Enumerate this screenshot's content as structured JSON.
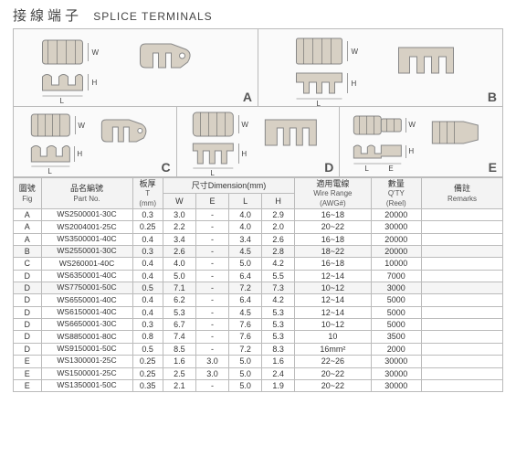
{
  "title_cn": "接線端子",
  "title_en": "SPLICE TERMINALS",
  "figures": [
    "A",
    "B",
    "C",
    "D",
    "E"
  ],
  "dim_labels": {
    "W": "W",
    "L": "L",
    "H": "H",
    "E": "E"
  },
  "header": {
    "fig_cn": "圖號",
    "fig_en": "Fig",
    "part_cn": "品名編號",
    "part_en": "Part No.",
    "thick_cn": "板厚",
    "thick_sub": "T",
    "thick_unit": "(mm)",
    "dim_cn": "尺寸",
    "dim_en": "Dimension(mm)",
    "W": "W",
    "E": "E",
    "L": "L",
    "H": "H",
    "wire_cn": "適用電線",
    "wire_en": "Wire Range",
    "wire_sub": "(AWG#)",
    "qty_cn": "數量",
    "qty_en": "Q'TY",
    "qty_sub": "(Reel)",
    "remarks_cn": "備註",
    "remarks_en": "Remarks"
  },
  "rows": [
    {
      "fig": "A",
      "part": "WS2500001-30C",
      "t": "0.3",
      "w": "3.0",
      "e": "-",
      "l": "4.0",
      "h": "2.9",
      "wire": "16~18",
      "qty": "20000",
      "rem": ""
    },
    {
      "fig": "A",
      "part": "WS2004001-25C",
      "t": "0.25",
      "w": "2.2",
      "e": "-",
      "l": "4.0",
      "h": "2.0",
      "wire": "20~22",
      "qty": "30000",
      "rem": ""
    },
    {
      "fig": "A",
      "part": "WS3500001-40C",
      "t": "0.4",
      "w": "3.4",
      "e": "-",
      "l": "3.4",
      "h": "2.6",
      "wire": "16~18",
      "qty": "20000",
      "rem": ""
    },
    {
      "fig": "B",
      "part": "WS2550001-30C",
      "t": "0.3",
      "w": "2.6",
      "e": "-",
      "l": "4.5",
      "h": "2.8",
      "wire": "18~22",
      "qty": "20000",
      "rem": ""
    },
    {
      "fig": "C",
      "part": "WS260001-40C",
      "t": "0.4",
      "w": "4.0",
      "e": "-",
      "l": "5.0",
      "h": "4.2",
      "wire": "16~18",
      "qty": "10000",
      "rem": ""
    },
    {
      "fig": "D",
      "part": "WS6350001-40C",
      "t": "0.4",
      "w": "5.0",
      "e": "-",
      "l": "6.4",
      "h": "5.5",
      "wire": "12~14",
      "qty": "7000",
      "rem": ""
    },
    {
      "fig": "D",
      "part": "WS7750001-50C",
      "t": "0.5",
      "w": "7.1",
      "e": "-",
      "l": "7.2",
      "h": "7.3",
      "wire": "10~12",
      "qty": "3000",
      "rem": ""
    },
    {
      "fig": "D",
      "part": "WS6550001-40C",
      "t": "0.4",
      "w": "6.2",
      "e": "-",
      "l": "6.4",
      "h": "4.2",
      "wire": "12~14",
      "qty": "5000",
      "rem": ""
    },
    {
      "fig": "D",
      "part": "WS6150001-40C",
      "t": "0.4",
      "w": "5.3",
      "e": "-",
      "l": "4.5",
      "h": "5.3",
      "wire": "12~14",
      "qty": "5000",
      "rem": ""
    },
    {
      "fig": "D",
      "part": "WS6650001-30C",
      "t": "0.3",
      "w": "6.7",
      "e": "-",
      "l": "7.6",
      "h": "5.3",
      "wire": "10~12",
      "qty": "5000",
      "rem": ""
    },
    {
      "fig": "D",
      "part": "WS8850001-80C",
      "t": "0.8",
      "w": "7.4",
      "e": "-",
      "l": "7.6",
      "h": "5.3",
      "wire": "10",
      "qty": "3500",
      "rem": ""
    },
    {
      "fig": "D",
      "part": "WS9150001-50C",
      "t": "0.5",
      "w": "8.5",
      "e": "-",
      "l": "7.2",
      "h": "8.3",
      "wire": "16mm²",
      "qty": "2000",
      "rem": ""
    },
    {
      "fig": "E",
      "part": "WS1300001-25C",
      "t": "0.25",
      "w": "1.6",
      "e": "3.0",
      "l": "5.0",
      "h": "1.6",
      "wire": "22~26",
      "qty": "30000",
      "rem": ""
    },
    {
      "fig": "E",
      "part": "WS1500001-25C",
      "t": "0.25",
      "w": "2.5",
      "e": "3.0",
      "l": "5.0",
      "h": "2.4",
      "wire": "20~22",
      "qty": "30000",
      "rem": ""
    },
    {
      "fig": "E",
      "part": "WS1350001-50C",
      "t": "0.35",
      "w": "2.1",
      "e": "-",
      "l": "5.0",
      "h": "1.9",
      "wire": "20~22",
      "qty": "30000",
      "rem": ""
    }
  ],
  "colors": {
    "bg": "#ffffff",
    "border": "#bbbbbb",
    "part_fill": "#d7d0c4"
  }
}
